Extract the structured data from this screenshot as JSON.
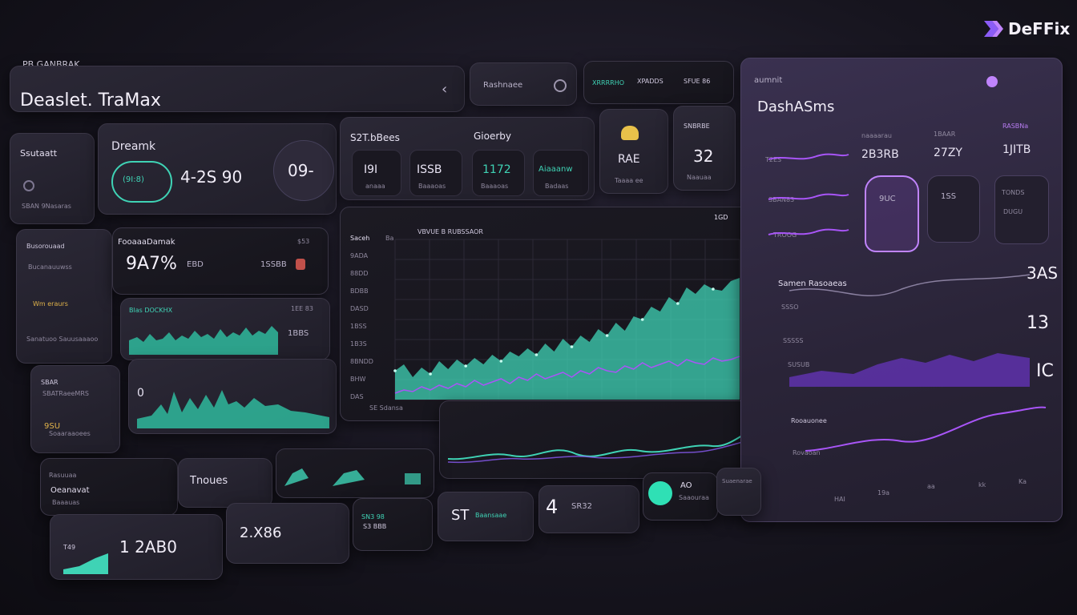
{
  "brand": {
    "name": "DeFFix",
    "small_label": "PB GANBRAK"
  },
  "header": {
    "title": "Deaslet. TraMax",
    "search_label": "Rashnaee",
    "menu": [
      "XRRRRHO",
      "XPADDS",
      "SFUE 86"
    ]
  },
  "left_cards": {
    "stats_title": "Ssutaatt",
    "stats_sub": "SBAN  9Nasaras",
    "dreamik_title": "Dreamk",
    "dreamik_gauge": "(9I:8)",
    "dreamik_value": "4-2S 90",
    "dreamik_badge": "09-",
    "side_items": [
      "Busorouaad",
      "Bucanauuwss",
      "Wm eraurs",
      "Sanatuoo Sauusaaaoo",
      "SBAR",
      "SBATRaeeMRS",
      "9SU",
      "Soaaraaoees"
    ],
    "forecast_title": "FooaaaDamak",
    "forecast_value": "9A7%",
    "forecast_sub": "EBD",
    "forecast_right": "1SSBB",
    "forecast_badge": "$53",
    "spark1_title": "Blas DOCKHX",
    "spark1_value": "1EE 83",
    "spark1_value2": "1BBS",
    "spark2_label": "0"
  },
  "top_tiles": {
    "group1_title": "S2T.bBees",
    "group2_title": "Gioerby",
    "items": [
      "I9I",
      "ISSB",
      "1172",
      "Aiaaanw"
    ],
    "items_sub": [
      "anaaa",
      "Baaaoas",
      "Baaaoas",
      "Badaas"
    ],
    "icon_tile_label": "RAE",
    "icon_tile_sub": "Taaaa ee",
    "badge_title": "SNBRBE",
    "badge_value": "32",
    "badge_sub": "Naauaa"
  },
  "main_chart": {
    "title": "Saceh",
    "legend": [
      "Ba",
      "VBVUE B RUBSSAOR"
    ],
    "corner": "1GD",
    "y_labels": [
      "9ADA",
      "88DD",
      "BDBB",
      "DASD",
      "1BSS",
      "1B3S",
      "8BNDD",
      "BHW",
      "DAS"
    ],
    "x_caption": "SE Sdansa"
  },
  "right_panel": {
    "title": "DashASms",
    "top_label": "aumnit",
    "rows": [
      "T2ES",
      "SBAN83",
      "TROOG"
    ],
    "cols": [
      "2B3RB",
      "27ZY",
      "1JITB"
    ],
    "col_labels": [
      "naaaarau",
      "1BAAR",
      "RASBNa"
    ],
    "bottle_values": [
      "9UC",
      "1SS"
    ],
    "right_values": [
      "TONDS",
      "DUGU"
    ],
    "chart_title": "Samen Rasoaeas",
    "chart_rows": [
      "SSSO",
      "SSSSS",
      "SUSUB"
    ],
    "big_values": [
      "3AS",
      "13",
      "IC"
    ],
    "bottom_rows": [
      "Rooauonee",
      "Rovaoan"
    ],
    "x_labels": [
      "HAI",
      "19a",
      "aa",
      "kk",
      "Ka"
    ]
  },
  "bottom_row": {
    "item1_title": "Rasuuaa",
    "item1_value": "Oeanavat",
    "item1_sub": "Baaauas",
    "tradies": "Tnoues",
    "tile2_label": "T49",
    "tile2_value": "1 2AB0",
    "tile3_value": "2.X86",
    "tile4_label": "SN3 98",
    "tile4_value": "S3 BBB",
    "tile5_value": "ST",
    "tile5_label": "Baansaae",
    "tile6_value": "4",
    "tile6_label": "SR32",
    "tile7_value": "AO",
    "tile7_label": "Saaouraa",
    "tile8_label": "Suaenarae"
  },
  "colors": {
    "teal": "#3fd3b5",
    "violet": "#a855f7",
    "bg": "#17151f"
  },
  "chart_data": {
    "type": "area",
    "x": [
      1,
      2,
      3,
      4,
      5,
      6,
      7,
      8,
      9,
      10,
      11,
      12,
      13,
      14,
      15,
      16,
      17,
      18,
      19,
      20,
      21,
      22,
      23,
      24,
      25,
      26,
      27,
      28,
      29,
      30,
      31,
      32,
      33,
      34,
      35,
      36,
      37,
      38,
      39,
      40
    ],
    "series": [
      {
        "values": [
          18,
          22,
          14,
          20,
          16,
          24,
          19,
          25,
          21,
          26,
          22,
          28,
          24,
          30,
          27,
          32,
          28,
          35,
          30,
          38,
          33,
          40,
          36,
          44,
          40,
          48,
          43,
          52,
          50,
          58,
          55,
          64,
          60,
          70,
          66,
          72,
          69,
          68,
          74,
          76
        ]
      },
      {
        "values": [
          4,
          6,
          5,
          8,
          6,
          9,
          7,
          10,
          8,
          12,
          9,
          11,
          13,
          10,
          14,
          12,
          16,
          13,
          15,
          17,
          14,
          18,
          16,
          20,
          18,
          17,
          21,
          19,
          23,
          20,
          22,
          24,
          21,
          25,
          23,
          22,
          26,
          24,
          25,
          27
        ]
      }
    ],
    "ylim": [
      0,
      100
    ]
  }
}
